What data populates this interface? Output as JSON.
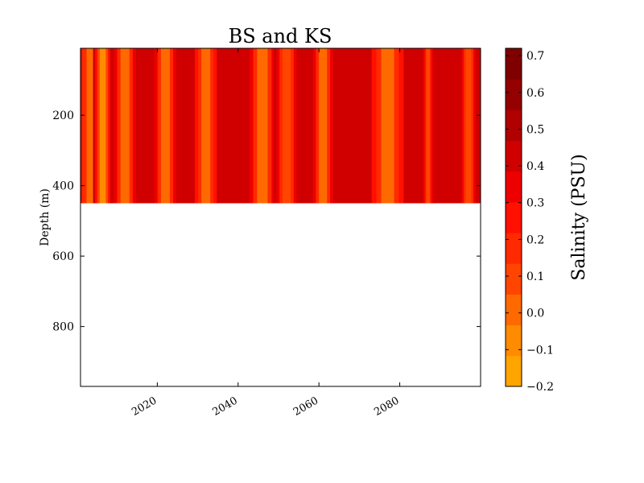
{
  "chart_data": {
    "type": "heatmap",
    "title": "BS and KS",
    "xlabel": "",
    "ylabel": "Depth (m)",
    "colorbar_label": "Salinity (PSU)",
    "x_ticks": [
      "2020",
      "2040",
      "2060",
      "2080"
    ],
    "y_ticks": [
      "200",
      "400",
      "600",
      "800"
    ],
    "colorbar_ticks": [
      "−0.2",
      "−0.1",
      "0.0",
      "0.1",
      "0.2",
      "0.3",
      "0.4",
      "0.5",
      "0.6",
      "0.7"
    ],
    "xlim": [
      2001,
      2100
    ],
    "ylim": [
      970,
      10
    ],
    "data_depth_range": [
      10,
      450
    ],
    "grid": false,
    "colormap": [
      "#ffa500",
      "#ff8c00",
      "#ff6a00",
      "#ff4500",
      "#ff2a00",
      "#ff1000",
      "#ee0000",
      "#d00000",
      "#b00000",
      "#950000",
      "#800000"
    ],
    "colorbar_range": [
      -0.2,
      0.72
    ],
    "base_value": 0.45,
    "anomalies": [
      {
        "year": 2004,
        "width_years": 3,
        "value": 0.05
      },
      {
        "year": 2006.5,
        "width_years": 1.5,
        "value": -0.05
      },
      {
        "year": 2012,
        "width_years": 2.2,
        "value": 0.04
      },
      {
        "year": 2022,
        "width_years": 2.2,
        "value": 0.03
      },
      {
        "year": 2032,
        "width_years": 2.2,
        "value": 0.0
      },
      {
        "year": 2046,
        "width_years": 2.6,
        "value": 0.02
      },
      {
        "year": 2052,
        "width_years": 2.0,
        "value": 0.06
      },
      {
        "year": 2061,
        "width_years": 2.0,
        "value": 0.03
      },
      {
        "year": 2077,
        "width_years": 3.2,
        "value": -0.01
      },
      {
        "year": 2087,
        "width_years": 1.0,
        "value": 0.12
      },
      {
        "year": 2097,
        "width_years": 1.4,
        "value": 0.08
      }
    ]
  }
}
